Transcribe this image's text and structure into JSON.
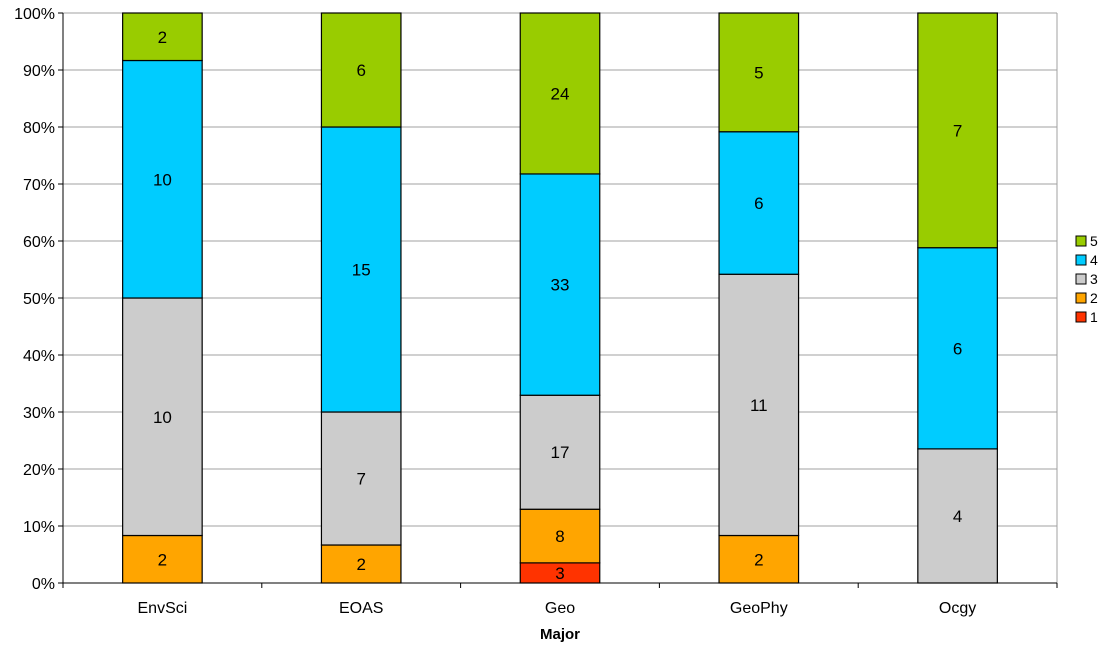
{
  "chart_data": {
    "type": "bar",
    "stacked": true,
    "normalized_percent": true,
    "xlabel": "Major",
    "ylabel": "",
    "ylim": [
      0,
      100
    ],
    "yticks": [
      "0%",
      "10%",
      "20%",
      "30%",
      "40%",
      "50%",
      "60%",
      "70%",
      "80%",
      "90%",
      "100%"
    ],
    "grid": true,
    "legend_position": "right",
    "categories": [
      "EnvSci",
      "EOAS",
      "Geo",
      "GeoPhy",
      "Ocgy"
    ],
    "series": [
      {
        "name": "1",
        "color": "#ff3300",
        "values": [
          0,
          0,
          3,
          0,
          0
        ]
      },
      {
        "name": "2",
        "color": "#ffa500",
        "values": [
          2,
          2,
          8,
          2,
          0
        ]
      },
      {
        "name": "3",
        "color": "#cccccc",
        "values": [
          10,
          7,
          17,
          11,
          4
        ]
      },
      {
        "name": "4",
        "color": "#00ccff",
        "values": [
          10,
          15,
          33,
          6,
          6
        ]
      },
      {
        "name": "5",
        "color": "#99cc00",
        "values": [
          2,
          6,
          24,
          5,
          7
        ]
      }
    ],
    "legend_order": [
      "5",
      "4",
      "3",
      "2",
      "1"
    ]
  }
}
